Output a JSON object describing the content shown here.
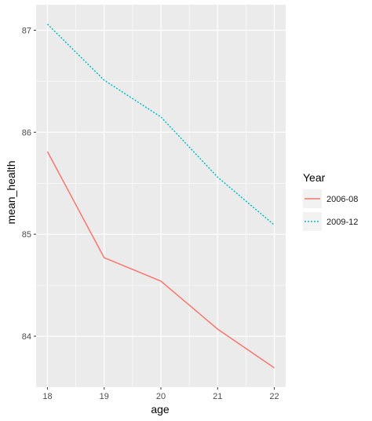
{
  "chart_data": {
    "type": "line",
    "x": [
      18,
      19,
      20,
      21,
      22
    ],
    "series": [
      {
        "name": "2006-08",
        "values": [
          85.81,
          84.77,
          84.54,
          84.07,
          83.69
        ],
        "color": "#F8766D",
        "linetype": "solid"
      },
      {
        "name": "2009-12",
        "values": [
          87.06,
          86.51,
          86.15,
          85.56,
          85.09
        ],
        "color": "#00BFC4",
        "linetype": "dotted"
      }
    ],
    "xlabel": "age",
    "ylabel": "mean_health",
    "x_ticks": [
      "18",
      "19",
      "20",
      "21",
      "22"
    ],
    "y_ticks": [
      "84",
      "85",
      "86",
      "87"
    ],
    "xlim": [
      17.8,
      22.2
    ],
    "ylim": [
      83.5,
      87.25
    ],
    "grid": true,
    "panel_background": "#EBEBEB",
    "legend": {
      "title": "Year",
      "position": "right"
    }
  }
}
